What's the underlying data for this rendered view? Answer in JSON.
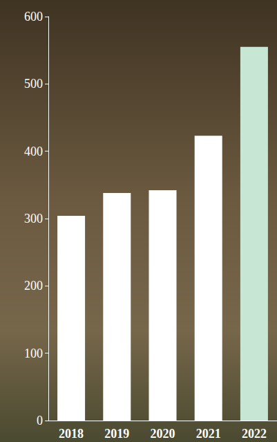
{
  "chart_data": {
    "type": "bar",
    "categories": [
      "2018",
      "2019",
      "2020",
      "2021",
      "2022"
    ],
    "values": [
      304,
      338,
      342,
      423,
      555
    ],
    "colors": [
      "#ffffff",
      "#ffffff",
      "#ffffff",
      "#ffffff",
      "#c8e6d4"
    ],
    "ylim": [
      0,
      600
    ],
    "yticks": [
      0,
      100,
      200,
      300,
      400,
      500,
      600
    ],
    "grid": false
  }
}
